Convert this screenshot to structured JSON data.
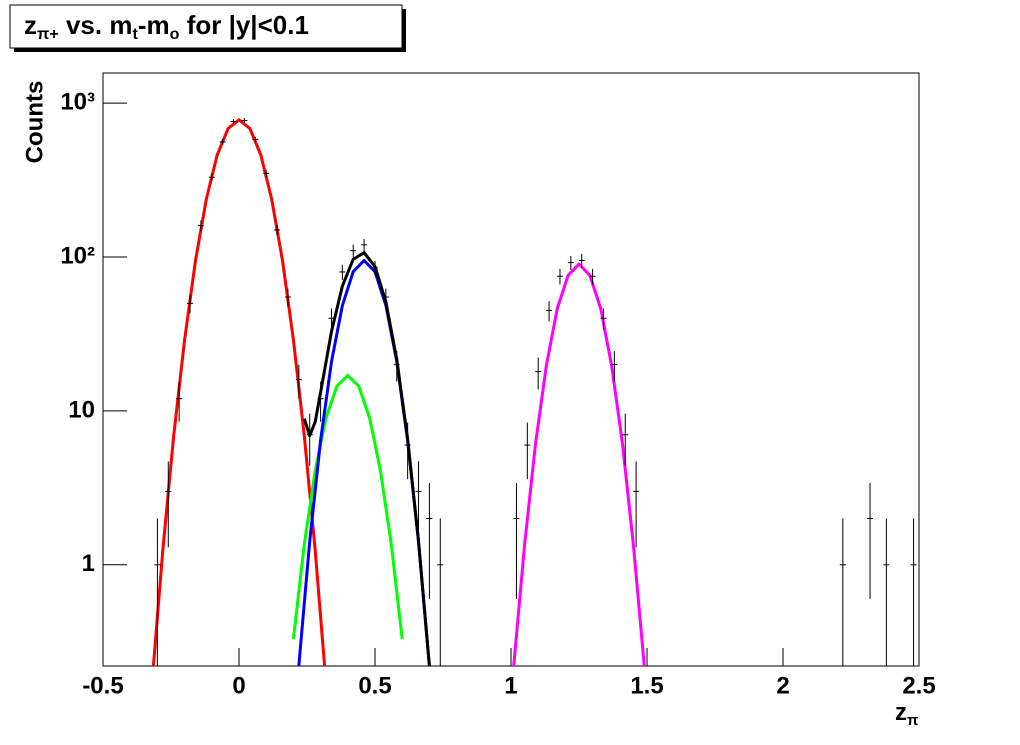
{
  "chart_data": {
    "type": "line",
    "title": [
      "z",
      "π+",
      " vs. m",
      "t",
      "-m",
      "o",
      " for |y|<0.1"
    ],
    "xlabel": [
      "z",
      "π"
    ],
    "ylabel": "Counts",
    "yscale": "log",
    "xlim": [
      -0.5,
      2.5
    ],
    "ylim": [
      0.22,
      1570
    ],
    "xticks": [
      -0.5,
      0,
      0.5,
      1,
      1.5,
      2,
      2.5
    ],
    "yticks": [
      1,
      10,
      {
        "value": 100,
        "label": "10²"
      },
      {
        "value": 1000,
        "label": "10³"
      }
    ],
    "series": [
      {
        "color": "#ff0000",
        "x": [
          -0.32,
          -0.28,
          -0.24,
          -0.2,
          -0.16,
          -0.12,
          -0.08,
          -0.04,
          0,
          0.04,
          0.08,
          0.12,
          0.16,
          0.2,
          0.24,
          0.28,
          0.32
        ],
        "values": [
          0.17,
          1.24,
          6.9,
          29,
          95,
          239,
          461,
          684,
          780,
          684,
          461,
          239,
          95,
          29,
          6.9,
          1.24,
          0.17
        ]
      },
      {
        "color": "#00ff00",
        "x": [
          0.2,
          0.24,
          0.28,
          0.32,
          0.36,
          0.4,
          0.44,
          0.48,
          0.52,
          0.56,
          0.6
        ],
        "values": [
          0.33,
          1.36,
          4.1,
          9,
          14.5,
          17,
          14.5,
          9,
          4.1,
          1.36,
          0.33
        ]
      },
      {
        "color": "#0000ff",
        "x": [
          0.22,
          0.26,
          0.3,
          0.34,
          0.38,
          0.42,
          0.46,
          0.5,
          0.54,
          0.58,
          0.62,
          0.66,
          0.7
        ],
        "values": [
          0.22,
          1.42,
          6.45,
          20.9,
          48.5,
          80.3,
          95,
          80.3,
          48.5,
          20.9,
          6.45,
          1.42,
          0.22
        ]
      },
      {
        "color": "#000000",
        "x": [
          0.24,
          0.26,
          0.28,
          0.3,
          0.34,
          0.38,
          0.42,
          0.46,
          0.5,
          0.54,
          0.58,
          0.62,
          0.66,
          0.7
        ],
        "values": [
          8.9,
          6.9,
          8.5,
          13.2,
          32.8,
          64.8,
          96.6,
          106.9,
          86.6,
          51,
          21.6,
          6.6,
          1.43,
          0.22
        ]
      },
      {
        "color": "#ff00ff",
        "x": [
          1.01,
          1.05,
          1.09,
          1.13,
          1.17,
          1.21,
          1.25,
          1.29,
          1.33,
          1.37,
          1.41,
          1.45,
          1.49
        ],
        "values": [
          0.22,
          1.35,
          6.1,
          19.8,
          46,
          76,
          90,
          76,
          46,
          19.8,
          6.1,
          1.35,
          0.22
        ]
      }
    ],
    "points": {
      "color": "#000000",
      "x": [
        -0.3,
        -0.26,
        -0.22,
        -0.18,
        -0.14,
        -0.1,
        -0.06,
        -0.02,
        0.02,
        0.06,
        0.1,
        0.14,
        0.18,
        0.22,
        0.26,
        0.3,
        0.34,
        0.38,
        0.42,
        0.46,
        0.5,
        0.54,
        0.58,
        0.62,
        0.66,
        0.7,
        0.74,
        1.02,
        1.06,
        1.1,
        1.14,
        1.18,
        1.22,
        1.26,
        1.3,
        1.34,
        1.38,
        1.42,
        1.46,
        2.22,
        2.32,
        2.38,
        2.48
      ],
      "values": [
        1,
        3,
        12,
        50,
        160,
        330,
        560,
        760,
        770,
        580,
        350,
        150,
        55,
        16,
        7,
        12,
        40,
        80,
        110,
        120,
        85,
        55,
        20,
        6,
        3,
        2,
        1,
        2,
        6,
        18,
        45,
        75,
        92,
        95,
        75,
        40,
        20,
        7,
        3,
        1,
        2,
        1,
        1
      ],
      "errors": [
        1,
        1.7,
        3.5,
        7,
        13,
        18,
        24,
        28,
        28,
        24,
        19,
        12,
        7.4,
        4,
        2.6,
        3.5,
        6.3,
        9,
        10.5,
        11,
        9.2,
        7.4,
        4.5,
        2.4,
        1.7,
        1.4,
        1,
        1.4,
        2.4,
        4.2,
        6.7,
        8.7,
        9.6,
        9.7,
        8.7,
        6.3,
        4.5,
        2.6,
        1.7,
        1,
        1.4,
        1,
        1
      ]
    }
  }
}
